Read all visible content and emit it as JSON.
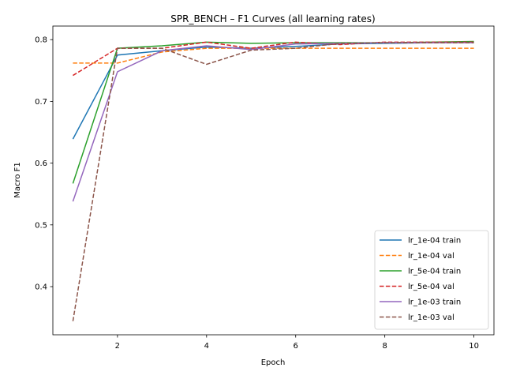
{
  "chart_data": {
    "type": "line",
    "title": "SPR_BENCH – F1 Curves (all learning rates)",
    "xlabel": "Epoch",
    "ylabel": "Macro F1",
    "xlim": [
      0.55,
      10.45
    ],
    "ylim": [
      0.322,
      0.822
    ],
    "xticks": [
      2,
      4,
      6,
      8,
      10
    ],
    "yticks": [
      0.4,
      0.5,
      0.6,
      0.7,
      0.8
    ],
    "grid": false,
    "legend_position": "lower right",
    "x": [
      1,
      2,
      3,
      4,
      5,
      6,
      7,
      8,
      9,
      10
    ],
    "series": [
      {
        "name": "lr_1e-04 train",
        "color": "#1f77b4",
        "dash": "solid",
        "values": [
          0.639,
          0.775,
          0.782,
          0.788,
          0.786,
          0.789,
          0.793,
          0.794,
          0.795,
          0.796
        ]
      },
      {
        "name": "lr_1e-04 val",
        "color": "#ff7f0e",
        "dash": "dashed",
        "values": [
          0.762,
          0.762,
          0.78,
          0.786,
          0.786,
          0.786,
          0.786,
          0.786,
          0.786,
          0.786
        ]
      },
      {
        "name": "lr_5e-04 train",
        "color": "#2ca02c",
        "dash": "solid",
        "values": [
          0.567,
          0.786,
          0.79,
          0.796,
          0.794,
          0.795,
          0.795,
          0.795,
          0.796,
          0.797
        ]
      },
      {
        "name": "lr_5e-04 val",
        "color": "#d62728",
        "dash": "dashed",
        "values": [
          0.742,
          0.786,
          0.786,
          0.796,
          0.786,
          0.796,
          0.792,
          0.796,
          0.796,
          0.796
        ]
      },
      {
        "name": "lr_1e-03 train",
        "color": "#9467bd",
        "dash": "solid",
        "values": [
          0.538,
          0.748,
          0.782,
          0.79,
          0.784,
          0.793,
          0.794,
          0.795,
          0.795,
          0.795
        ]
      },
      {
        "name": "lr_1e-03 val",
        "color": "#8c564b",
        "dash": "dashed",
        "values": [
          0.344,
          0.786,
          0.786,
          0.76,
          0.783,
          0.786,
          0.794,
          0.795,
          0.795,
          0.795
        ]
      }
    ]
  }
}
